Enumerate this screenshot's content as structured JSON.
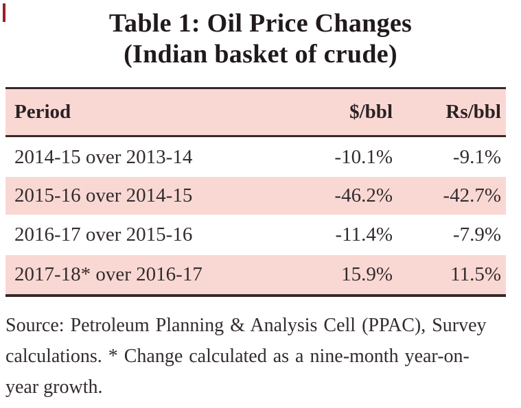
{
  "title": {
    "line1": "Table 1: Oil Price Changes",
    "line2": "(Indian basket of crude)"
  },
  "table": {
    "columns": [
      "Period",
      "$/bbl",
      "Rs/bbl"
    ],
    "rows": [
      {
        "period": "2014-15 over 2013-14",
        "usd": "-10.1%",
        "rs": "-9.1%"
      },
      {
        "period": "2015-16 over 2014-15",
        "usd": "-46.2%",
        "rs": "-42.7%"
      },
      {
        "period": "2016-17 over 2015-16",
        "usd": "-11.4%",
        "rs": "-7.9%"
      },
      {
        "period": "2017-18* over 2016-17",
        "usd": "15.9%",
        "rs": "11.5%"
      }
    ]
  },
  "source": {
    "lines": [
      "Source: Petroleum Planning & Analysis Cell (PPAC), Survey",
      "calculations. * Change calculated as a nine-month year-on-",
      "year growth."
    ]
  },
  "colors": {
    "row_highlight": "#f9d8d4",
    "rule": "#362728",
    "accent_tick": "#9e1d21"
  }
}
